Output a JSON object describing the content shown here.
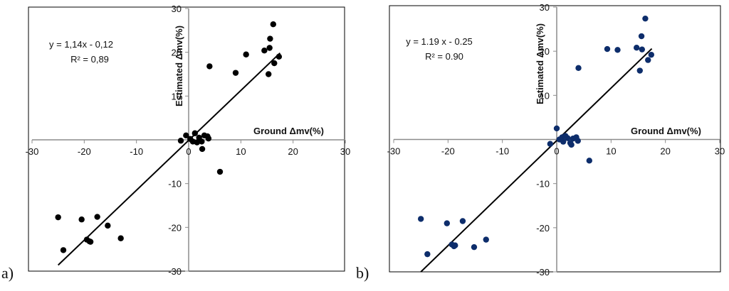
{
  "chart_data": [
    {
      "type": "scatter",
      "panel_label": "a)",
      "xlabel": "Ground Δmv(%)",
      "ylabel": "Estimated Δmv(%)",
      "xlim": [
        -30,
        30
      ],
      "ylim": [
        -30,
        30
      ],
      "x_ticks": [
        -30,
        -20,
        -10,
        0,
        10,
        20,
        30
      ],
      "y_ticks": [
        -30,
        -20,
        -10,
        0,
        10,
        20,
        30
      ],
      "x_tick_labels": [
        "-30",
        "-20",
        "-10",
        "0",
        "10",
        "20",
        "30"
      ],
      "y_tick_labels": [
        "-30",
        "-20",
        "-10",
        "0",
        "10",
        "20",
        "30"
      ],
      "equation": "y = 1,14x - 0,12",
      "r_squared": "R² = 0,89",
      "marker_color": "#000000",
      "fit": {
        "slope": 1.14,
        "intercept": -0.12,
        "x_range": [
          -25,
          17.5
        ]
      },
      "points": [
        [
          -25,
          -17.7
        ],
        [
          -24,
          -25.2
        ],
        [
          -20.5,
          -18.2
        ],
        [
          -17.5,
          -17.6
        ],
        [
          -19.5,
          -22.8
        ],
        [
          -19,
          -23.2
        ],
        [
          -18.8,
          -23.3
        ],
        [
          -15.5,
          -19.6
        ],
        [
          -13,
          -22.5
        ],
        [
          -1.5,
          -0.2
        ],
        [
          -0.5,
          1.0
        ],
        [
          0.3,
          0.2
        ],
        [
          0.8,
          -0.4
        ],
        [
          1.2,
          1.5
        ],
        [
          1.6,
          -0.6
        ],
        [
          2.0,
          0.5
        ],
        [
          2.5,
          -0.4
        ],
        [
          3.0,
          1.0
        ],
        [
          3.6,
          0.8
        ],
        [
          3.8,
          0.3
        ],
        [
          2.6,
          -2.1
        ],
        [
          6.0,
          -7.3
        ],
        [
          4.0,
          16.8
        ],
        [
          9.0,
          15.3
        ],
        [
          11.0,
          19.5
        ],
        [
          14.5,
          20.4
        ],
        [
          15.3,
          15.0
        ],
        [
          15.5,
          21.0
        ],
        [
          15.6,
          23.1
        ],
        [
          16.2,
          26.4
        ],
        [
          16.4,
          17.5
        ],
        [
          17.3,
          19.0
        ]
      ]
    },
    {
      "type": "scatter",
      "panel_label": "b)",
      "xlabel": "Ground Δmv(%)",
      "ylabel": "Estimated Δmv(%)",
      "xlim": [
        -30,
        30
      ],
      "ylim": [
        -30,
        30
      ],
      "x_ticks": [
        -30,
        -20,
        -10,
        0,
        10,
        20,
        30
      ],
      "y_ticks": [
        -30,
        -20,
        -10,
        0,
        10,
        20,
        30
      ],
      "x_tick_labels": [
        "-30",
        "-20",
        "-10",
        "0",
        "10",
        "20",
        "30"
      ],
      "y_tick_labels": [
        "-30",
        "-20",
        "-10",
        "0",
        "10",
        "20",
        "30"
      ],
      "equation": "y = 1.19 x - 0.25",
      "r_squared": "R² = 0.90",
      "marker_color": "#0d2d6b",
      "fit": {
        "slope": 1.19,
        "intercept": -0.25,
        "x_range": [
          -25,
          17.5
        ]
      },
      "points": [
        [
          -25,
          -18.0
        ],
        [
          -23.8,
          -26.0
        ],
        [
          -20.2,
          -19.0
        ],
        [
          -17.3,
          -18.5
        ],
        [
          -19.3,
          -23.8
        ],
        [
          -18.9,
          -24.2
        ],
        [
          -18.7,
          -24.0
        ],
        [
          -15.2,
          -24.4
        ],
        [
          -13,
          -22.7
        ],
        [
          -1.2,
          -1.0
        ],
        [
          0,
          2.5
        ],
        [
          0.5,
          0.0
        ],
        [
          1.0,
          0.5
        ],
        [
          1.2,
          -0.5
        ],
        [
          1.6,
          0.8
        ],
        [
          2.0,
          0.3
        ],
        [
          2.5,
          -0.8
        ],
        [
          3.0,
          0.2
        ],
        [
          3.6,
          0.5
        ],
        [
          3.9,
          -0.3
        ],
        [
          2.7,
          -1.2
        ],
        [
          6.0,
          -4.8
        ],
        [
          4.0,
          16.2
        ],
        [
          9.3,
          20.5
        ],
        [
          11.2,
          20.3
        ],
        [
          14.7,
          20.8
        ],
        [
          15.3,
          15.6
        ],
        [
          15.6,
          23.4
        ],
        [
          15.7,
          20.4
        ],
        [
          16.3,
          27.4
        ],
        [
          16.8,
          18.0
        ],
        [
          17.4,
          19.2
        ]
      ]
    }
  ]
}
